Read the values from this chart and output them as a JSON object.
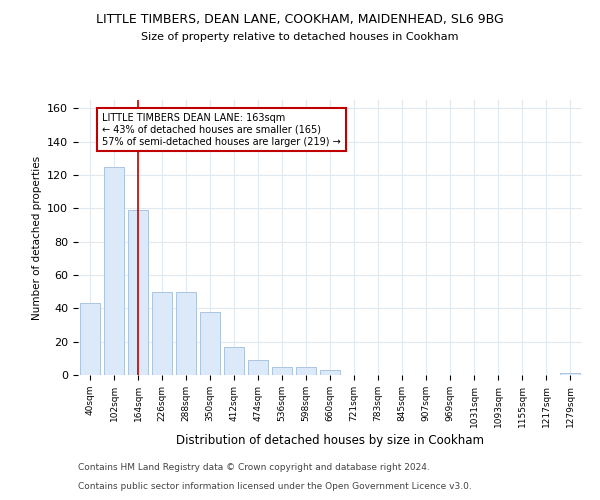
{
  "title1": "LITTLE TIMBERS, DEAN LANE, COOKHAM, MAIDENHEAD, SL6 9BG",
  "title2": "Size of property relative to detached houses in Cookham",
  "xlabel": "Distribution of detached houses by size in Cookham",
  "ylabel": "Number of detached properties",
  "categories": [
    "40sqm",
    "102sqm",
    "164sqm",
    "226sqm",
    "288sqm",
    "350sqm",
    "412sqm",
    "474sqm",
    "536sqm",
    "598sqm",
    "660sqm",
    "721sqm",
    "783sqm",
    "845sqm",
    "907sqm",
    "969sqm",
    "1031sqm",
    "1093sqm",
    "1155sqm",
    "1217sqm",
    "1279sqm"
  ],
  "values": [
    43,
    125,
    99,
    50,
    50,
    38,
    17,
    9,
    5,
    5,
    3,
    0,
    0,
    0,
    0,
    0,
    0,
    0,
    0,
    0,
    1
  ],
  "bar_color": "#dce9f8",
  "bar_edge_color": "#aac4e0",
  "vline_color": "#c00000",
  "annotation_text": "LITTLE TIMBERS DEAN LANE: 163sqm\n← 43% of detached houses are smaller (165)\n57% of semi-detached houses are larger (219) →",
  "annotation_box_color": "#ffffff",
  "annotation_box_edge": "#c00000",
  "ylim": [
    0,
    165
  ],
  "footer1": "Contains HM Land Registry data © Crown copyright and database right 2024.",
  "footer2": "Contains public sector information licensed under the Open Government Licence v3.0.",
  "bg_color": "#ffffff",
  "plot_bg_color": "#ffffff",
  "grid_color": "#e0e8f0"
}
